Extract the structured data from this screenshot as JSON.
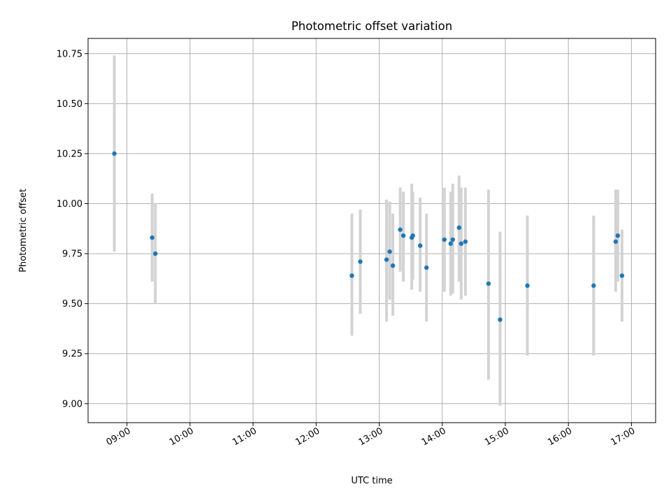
{
  "chart_data": {
    "type": "scatter",
    "title": "Photometric offset variation",
    "xlabel": "UTC time",
    "ylabel": "Photometric offset",
    "x_ticks": [
      "09:00",
      "10:00",
      "11:00",
      "12:00",
      "13:00",
      "14:00",
      "15:00",
      "16:00",
      "17:00"
    ],
    "y_ticks": [
      "9.00",
      "9.25",
      "9.50",
      "9.75",
      "10.00",
      "10.25",
      "10.50",
      "10.75"
    ],
    "xlim": [
      "08:23",
      "17:23"
    ],
    "ylim": [
      8.905,
      10.826
    ],
    "grid": true,
    "errorbar_color": "#d3d3d3",
    "marker_color": "#1f77b4",
    "points": [
      {
        "x": "08:48",
        "y": 10.25,
        "ylo": 9.76,
        "yhi": 10.74
      },
      {
        "x": "09:24",
        "y": 9.83,
        "ylo": 9.61,
        "yhi": 10.05
      },
      {
        "x": "09:27",
        "y": 9.75,
        "ylo": 9.5,
        "yhi": 10.0
      },
      {
        "x": "12:34",
        "y": 9.64,
        "ylo": 9.34,
        "yhi": 9.95
      },
      {
        "x": "12:42",
        "y": 9.71,
        "ylo": 9.45,
        "yhi": 9.97
      },
      {
        "x": "13:07",
        "y": 9.72,
        "ylo": 9.41,
        "yhi": 10.02
      },
      {
        "x": "13:10",
        "y": 9.76,
        "ylo": 9.52,
        "yhi": 10.01
      },
      {
        "x": "13:13",
        "y": 9.69,
        "ylo": 9.44,
        "yhi": 9.95
      },
      {
        "x": "13:20",
        "y": 9.87,
        "ylo": 9.66,
        "yhi": 10.08
      },
      {
        "x": "13:23",
        "y": 9.84,
        "ylo": 9.61,
        "yhi": 10.06
      },
      {
        "x": "13:31",
        "y": 9.83,
        "ylo": 9.57,
        "yhi": 10.1
      },
      {
        "x": "13:32",
        "y": 9.84,
        "ylo": 9.62,
        "yhi": 10.06
      },
      {
        "x": "13:39",
        "y": 9.79,
        "ylo": 9.56,
        "yhi": 10.03
      },
      {
        "x": "13:45",
        "y": 9.68,
        "ylo": 9.41,
        "yhi": 9.95
      },
      {
        "x": "14:02",
        "y": 9.82,
        "ylo": 9.56,
        "yhi": 10.08
      },
      {
        "x": "14:08",
        "y": 9.8,
        "ylo": 9.54,
        "yhi": 10.06
      },
      {
        "x": "14:10",
        "y": 9.82,
        "ylo": 9.55,
        "yhi": 10.1
      },
      {
        "x": "14:16",
        "y": 9.88,
        "ylo": 9.61,
        "yhi": 10.14
      },
      {
        "x": "14:18",
        "y": 9.8,
        "ylo": 9.52,
        "yhi": 10.08
      },
      {
        "x": "14:22",
        "y": 9.81,
        "ylo": 9.54,
        "yhi": 10.08
      },
      {
        "x": "14:44",
        "y": 9.6,
        "ylo": 9.12,
        "yhi": 10.07
      },
      {
        "x": "14:55",
        "y": 9.42,
        "ylo": 8.99,
        "yhi": 9.86
      },
      {
        "x": "15:21",
        "y": 9.59,
        "ylo": 9.24,
        "yhi": 9.94
      },
      {
        "x": "16:24",
        "y": 9.59,
        "ylo": 9.24,
        "yhi": 9.94
      },
      {
        "x": "16:45",
        "y": 9.81,
        "ylo": 9.56,
        "yhi": 10.07
      },
      {
        "x": "16:47",
        "y": 9.84,
        "ylo": 9.61,
        "yhi": 10.07
      },
      {
        "x": "16:51",
        "y": 9.64,
        "ylo": 9.41,
        "yhi": 9.87
      }
    ]
  }
}
